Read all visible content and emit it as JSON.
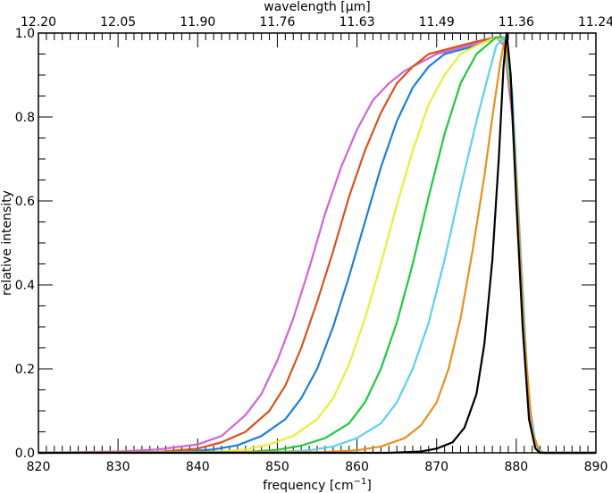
{
  "chart_data": {
    "type": "line",
    "xlabel": "frequency [cm",
    "xlabel_superscript": "−1",
    "xlabel_suffix": "]",
    "ylabel": "relative intensity",
    "top_axis_label": "wavelength [μm]",
    "xlim": [
      820,
      890
    ],
    "ylim": [
      0,
      1.0
    ],
    "x_ticks": [
      820,
      830,
      840,
      850,
      860,
      870,
      880,
      890
    ],
    "y_ticks": [
      0.0,
      0.2,
      0.4,
      0.6,
      0.8,
      1.0
    ],
    "x_tick_labels": [
      "820",
      "830",
      "840",
      "850",
      "860",
      "870",
      "880",
      "890"
    ],
    "y_tick_labels": [
      "0.0",
      "0.2",
      "0.4",
      "0.6",
      "0.8",
      "1.0"
    ],
    "top_ticks": [
      {
        "label": "12.20",
        "x": 820
      },
      {
        "label": "12.05",
        "x": 830
      },
      {
        "label": "11.90",
        "x": 840
      },
      {
        "label": "11.76",
        "x": 850
      },
      {
        "label": "11.63",
        "x": 860
      },
      {
        "label": "11.49",
        "x": 870
      },
      {
        "label": "11.36",
        "x": 880
      },
      {
        "label": "11.24",
        "x": 890
      }
    ],
    "grid": false,
    "series": [
      {
        "color": "#d064d6",
        "values": [
          [
            820,
            0
          ],
          [
            830,
            0.003
          ],
          [
            835,
            0.008
          ],
          [
            840,
            0.02
          ],
          [
            843,
            0.04
          ],
          [
            846,
            0.09
          ],
          [
            848,
            0.14
          ],
          [
            850,
            0.22
          ],
          [
            852,
            0.32
          ],
          [
            854,
            0.44
          ],
          [
            856,
            0.57
          ],
          [
            858,
            0.68
          ],
          [
            860,
            0.77
          ],
          [
            862,
            0.84
          ],
          [
            864,
            0.88
          ],
          [
            866,
            0.91
          ],
          [
            868,
            0.93
          ],
          [
            870,
            0.95
          ],
          [
            872,
            0.96
          ],
          [
            874,
            0.97
          ],
          [
            876,
            0.98
          ],
          [
            877.5,
            0.99
          ],
          [
            878.5,
            0.97
          ],
          [
            879.5,
            0.8
          ],
          [
            880.5,
            0.45
          ],
          [
            881.5,
            0.12
          ],
          [
            882.5,
            0.01
          ],
          [
            883.5,
            0
          ],
          [
            890,
            0
          ]
        ]
      },
      {
        "color": "#d4541e",
        "values": [
          [
            820,
            0
          ],
          [
            835,
            0.002
          ],
          [
            840,
            0.01
          ],
          [
            843,
            0.025
          ],
          [
            846,
            0.05
          ],
          [
            849,
            0.1
          ],
          [
            851,
            0.16
          ],
          [
            853,
            0.25
          ],
          [
            855,
            0.36
          ],
          [
            857,
            0.48
          ],
          [
            859,
            0.61
          ],
          [
            861,
            0.72
          ],
          [
            863,
            0.81
          ],
          [
            865,
            0.88
          ],
          [
            867,
            0.92
          ],
          [
            869,
            0.95
          ],
          [
            871,
            0.96
          ],
          [
            873,
            0.97
          ],
          [
            875,
            0.98
          ],
          [
            877.5,
            0.99
          ],
          [
            878.5,
            0.98
          ],
          [
            879.5,
            0.82
          ],
          [
            880.5,
            0.46
          ],
          [
            881.5,
            0.12
          ],
          [
            882.5,
            0.01
          ],
          [
            883.5,
            0
          ],
          [
            890,
            0
          ]
        ]
      },
      {
        "color": "#1f7fd4",
        "values": [
          [
            820,
            0
          ],
          [
            838,
            0.002
          ],
          [
            842,
            0.008
          ],
          [
            845,
            0.018
          ],
          [
            848,
            0.04
          ],
          [
            851,
            0.08
          ],
          [
            853,
            0.13
          ],
          [
            855,
            0.2
          ],
          [
            857,
            0.3
          ],
          [
            859,
            0.42
          ],
          [
            861,
            0.55
          ],
          [
            863,
            0.68
          ],
          [
            865,
            0.79
          ],
          [
            867,
            0.87
          ],
          [
            869,
            0.92
          ],
          [
            871,
            0.95
          ],
          [
            873,
            0.96
          ],
          [
            875,
            0.97
          ],
          [
            877.5,
            0.99
          ],
          [
            878.5,
            0.98
          ],
          [
            879.5,
            0.83
          ],
          [
            880.5,
            0.47
          ],
          [
            881.5,
            0.13
          ],
          [
            882.5,
            0.01
          ],
          [
            883.5,
            0
          ],
          [
            890,
            0
          ]
        ]
      },
      {
        "color": "#e8ee3a",
        "values": [
          [
            820,
            0
          ],
          [
            842,
            0.002
          ],
          [
            846,
            0.008
          ],
          [
            849,
            0.02
          ],
          [
            852,
            0.04
          ],
          [
            855,
            0.08
          ],
          [
            857,
            0.13
          ],
          [
            859,
            0.21
          ],
          [
            861,
            0.32
          ],
          [
            863,
            0.45
          ],
          [
            865,
            0.59
          ],
          [
            867,
            0.72
          ],
          [
            869,
            0.83
          ],
          [
            871,
            0.9
          ],
          [
            873,
            0.95
          ],
          [
            875,
            0.97
          ],
          [
            877.5,
            0.99
          ],
          [
            878.5,
            0.98
          ],
          [
            879.5,
            0.84
          ],
          [
            880.5,
            0.48
          ],
          [
            881.5,
            0.13
          ],
          [
            882.5,
            0.01
          ],
          [
            883.5,
            0
          ],
          [
            890,
            0
          ]
        ]
      },
      {
        "color": "#22c740",
        "values": [
          [
            820,
            0
          ],
          [
            846,
            0.002
          ],
          [
            850,
            0.007
          ],
          [
            853,
            0.017
          ],
          [
            856,
            0.035
          ],
          [
            859,
            0.07
          ],
          [
            861,
            0.12
          ],
          [
            863,
            0.2
          ],
          [
            865,
            0.31
          ],
          [
            867,
            0.45
          ],
          [
            869,
            0.61
          ],
          [
            871,
            0.76
          ],
          [
            873,
            0.88
          ],
          [
            875,
            0.95
          ],
          [
            877.5,
            0.99
          ],
          [
            878.5,
            0.99
          ],
          [
            879.5,
            0.85
          ],
          [
            880.5,
            0.49
          ],
          [
            881.5,
            0.13
          ],
          [
            882.5,
            0.01
          ],
          [
            883.5,
            0
          ],
          [
            890,
            0
          ]
        ]
      },
      {
        "color": "#5bd0f0",
        "values": [
          [
            820,
            0
          ],
          [
            850,
            0.002
          ],
          [
            854,
            0.006
          ],
          [
            857,
            0.015
          ],
          [
            860,
            0.035
          ],
          [
            863,
            0.07
          ],
          [
            865,
            0.12
          ],
          [
            867,
            0.2
          ],
          [
            869,
            0.31
          ],
          [
            871,
            0.46
          ],
          [
            873,
            0.63
          ],
          [
            875,
            0.79
          ],
          [
            876.5,
            0.9
          ],
          [
            877.5,
            0.97
          ],
          [
            878.5,
            0.99
          ],
          [
            879.5,
            0.86
          ],
          [
            880.5,
            0.5
          ],
          [
            881.5,
            0.14
          ],
          [
            882.5,
            0.01
          ],
          [
            883.5,
            0
          ],
          [
            890,
            0
          ]
        ]
      },
      {
        "color": "#e8901e",
        "values": [
          [
            820,
            0
          ],
          [
            856,
            0.002
          ],
          [
            860,
            0.006
          ],
          [
            863,
            0.015
          ],
          [
            866,
            0.035
          ],
          [
            868,
            0.065
          ],
          [
            870,
            0.12
          ],
          [
            871.5,
            0.2
          ],
          [
            873,
            0.32
          ],
          [
            874.5,
            0.48
          ],
          [
            876,
            0.66
          ],
          [
            877,
            0.8
          ],
          [
            878,
            0.93
          ],
          [
            878.5,
            0.98
          ],
          [
            879.2,
            0.92
          ],
          [
            880,
            0.65
          ],
          [
            881,
            0.28
          ],
          [
            882,
            0.05
          ],
          [
            883,
            0
          ],
          [
            890,
            0
          ]
        ]
      },
      {
        "color": "#000000",
        "values": [
          [
            820,
            0
          ],
          [
            864,
            0
          ],
          [
            868,
            0.003
          ],
          [
            870,
            0.01
          ],
          [
            872,
            0.025
          ],
          [
            873.5,
            0.06
          ],
          [
            875,
            0.14
          ],
          [
            876,
            0.26
          ],
          [
            877,
            0.46
          ],
          [
            877.8,
            0.7
          ],
          [
            878.4,
            0.92
          ],
          [
            878.8,
            1.0
          ],
          [
            879.3,
            0.9
          ],
          [
            880,
            0.6
          ],
          [
            880.8,
            0.3
          ],
          [
            881.6,
            0.08
          ],
          [
            882.4,
            0.01
          ],
          [
            883,
            0
          ],
          [
            890,
            0
          ]
        ]
      }
    ]
  }
}
